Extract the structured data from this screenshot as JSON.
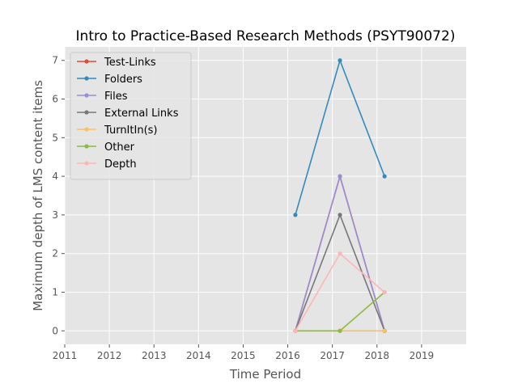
{
  "chart_data": {
    "type": "line",
    "title": "Intro to Practice-Based Research Methods (PSYT90072)",
    "xlabel": "Time Period",
    "ylabel": "Maximum depth of LMS content items",
    "xlim": [
      2011,
      2020
    ],
    "ylim": [
      -0.35,
      7.35
    ],
    "x_ticks": [
      2011,
      2012,
      2013,
      2014,
      2015,
      2016,
      2017,
      2018,
      2019
    ],
    "y_ticks": [
      0,
      1,
      2,
      3,
      4,
      5,
      6,
      7
    ],
    "grid": true,
    "legend_position": "top-left",
    "x": [
      2016.17,
      2017.17,
      2018.17
    ],
    "series": [
      {
        "name": "Test-Links",
        "color": "#e24a33",
        "values": [
          0,
          4,
          0
        ]
      },
      {
        "name": "Folders",
        "color": "#348abd",
        "values": [
          3,
          7,
          4
        ]
      },
      {
        "name": "Files",
        "color": "#988ed5",
        "values": [
          0,
          4,
          0
        ]
      },
      {
        "name": "External Links",
        "color": "#777777",
        "values": [
          0,
          3,
          0
        ]
      },
      {
        "name": "TurnItIn(s)",
        "color": "#fbc15e",
        "values": [
          0,
          0,
          0
        ]
      },
      {
        "name": "Other",
        "color": "#8eba42",
        "values": [
          0,
          0,
          1
        ]
      },
      {
        "name": "Depth",
        "color": "#ffb5b8",
        "values": [
          0,
          2,
          1
        ]
      }
    ]
  }
}
